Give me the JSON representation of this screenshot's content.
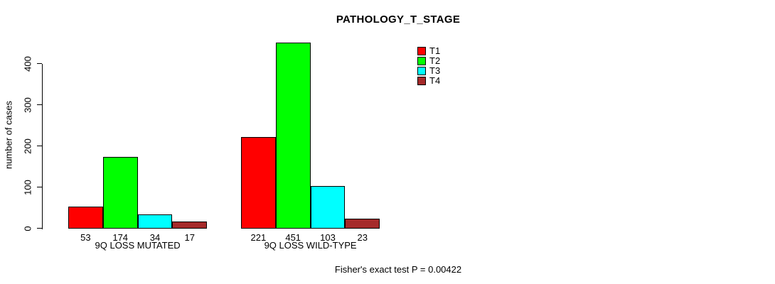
{
  "chart_data": {
    "type": "bar",
    "title": "PATHOLOGY_T_STAGE",
    "ylabel": "number of cases",
    "xlabel": "",
    "categories": [
      "9Q LOSS MUTATED",
      "9Q LOSS WILD-TYPE"
    ],
    "series": [
      {
        "name": "T1",
        "color": "#FF0000",
        "values": [
          53,
          221
        ]
      },
      {
        "name": "T2",
        "color": "#00FF00",
        "values": [
          174,
          451
        ]
      },
      {
        "name": "T3",
        "color": "#00FFFF",
        "values": [
          34,
          103
        ]
      },
      {
        "name": "T4",
        "color": "#A52A2A",
        "values": [
          17,
          23
        ]
      }
    ],
    "bar_value_labels": [
      [
        53,
        174,
        34,
        17
      ],
      [
        221,
        451,
        103,
        23
      ]
    ],
    "yticks": [
      0,
      100,
      200,
      300,
      400
    ],
    "ylim": [
      0,
      465
    ],
    "grid": false,
    "legend_position": "top-right",
    "annotation": "Fisher's exact test P = 0.00422"
  },
  "colors": {
    "axis": "#000000",
    "background": "#FFFFFF",
    "t1": "#FF0000",
    "t2": "#00FF00",
    "t3": "#00FFFF",
    "t4": "#A52A2A"
  }
}
